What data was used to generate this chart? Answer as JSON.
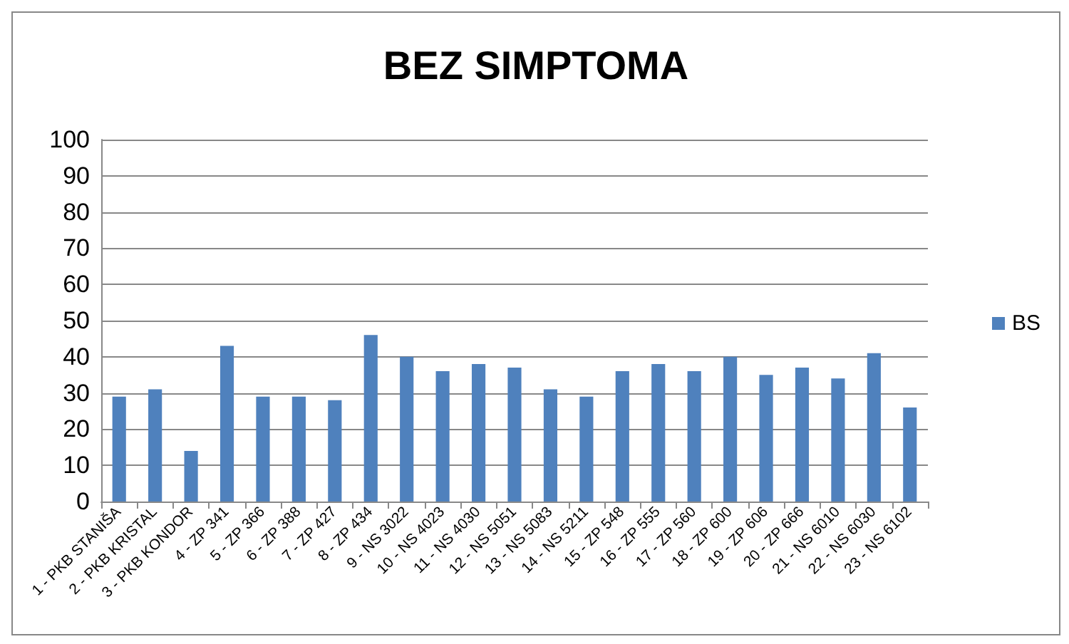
{
  "chart_data": {
    "type": "bar",
    "title": "BEZ SIMPTOMA",
    "categories": [
      "1 - PKB STANIŠA",
      "2 - PKB KRISTAL",
      "3 - PKB KONDOR",
      "4 - ZP 341",
      "5 - ZP 366",
      "6 - ZP 388",
      "7 - ZP 427",
      "8 - ZP 434",
      "9 - NS 3022",
      "10 - NS 4023",
      "11 - NS 4030",
      "12 - NS 5051",
      "13 - NS 5083",
      "14 - NS 5211",
      "15 - ZP 548",
      "16 - ZP 555",
      "17 - ZP 560",
      "18 - ZP 600",
      "19 - ZP 606",
      "20 - ZP 666",
      "21 - NS 6010",
      "22 - NS 6030",
      "23 - NS 6102"
    ],
    "series": [
      {
        "name": "BS",
        "color": "#4f81bd",
        "values": [
          29,
          31,
          14,
          43,
          29,
          29,
          28,
          46,
          40,
          36,
          38,
          37,
          31,
          29,
          36,
          38,
          36,
          40,
          35,
          37,
          34,
          41,
          26
        ]
      }
    ],
    "ylim": [
      0,
      100
    ],
    "yticks": [
      0,
      10,
      20,
      30,
      40,
      50,
      60,
      70,
      80,
      90,
      100
    ],
    "grid": "y",
    "legend": "right"
  }
}
